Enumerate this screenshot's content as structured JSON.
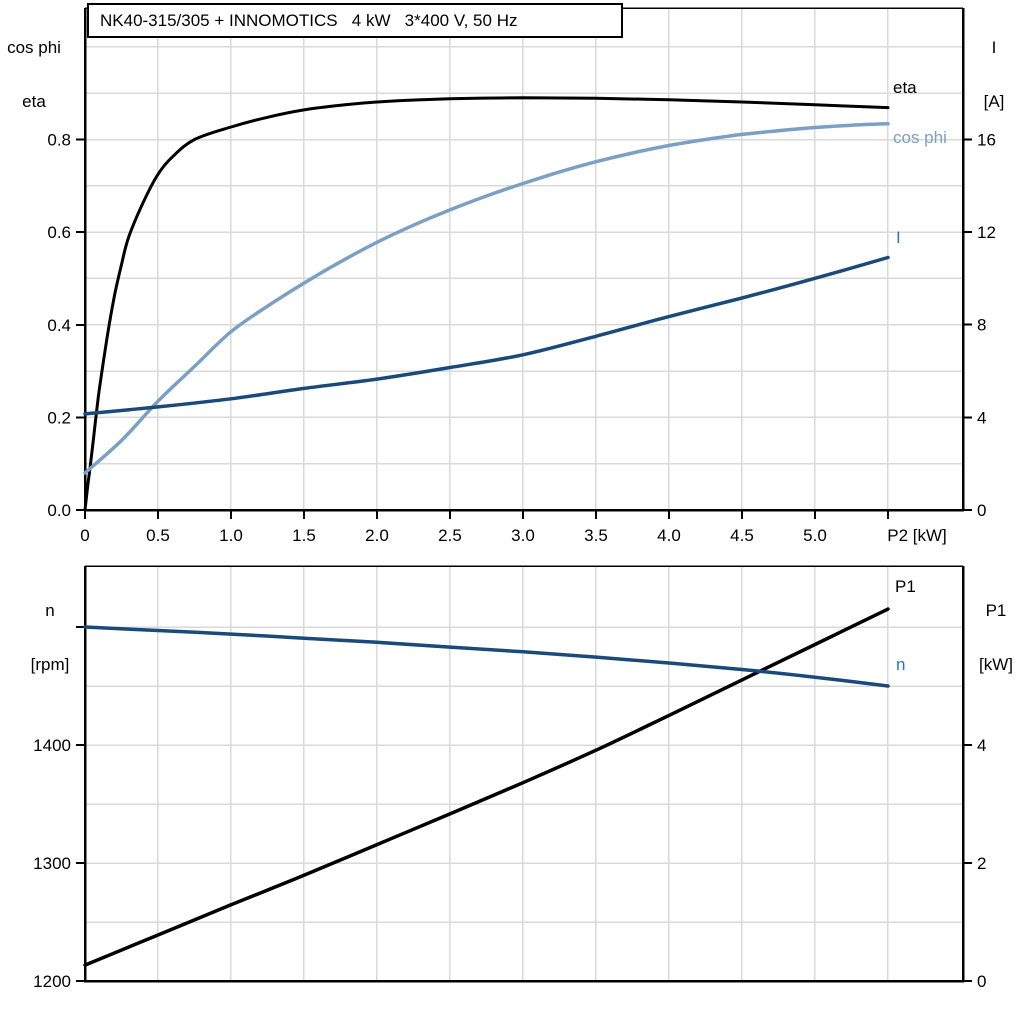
{
  "title_box": {
    "text": "NK40-315/305 + INNOMOTICS   4 kW   3*400 V, 50 Hz"
  },
  "colors": {
    "black": "#000000",
    "cos_phi_blue": "#7AA0C5",
    "dark_blue": "#1A4A7A",
    "label_blue": "#2E74B5",
    "grid": "#D9D9D9",
    "background": "#FFFFFF"
  },
  "axis_headers": {
    "top_left": [
      "cos phi",
      "eta"
    ],
    "top_right": [
      "I",
      "[A]"
    ],
    "bottom_left": [
      "n",
      "[rpm]"
    ],
    "bottom_right": [
      "P1",
      "[kW]"
    ]
  },
  "chart_data": [
    {
      "type": "line",
      "title": "NK40-315/305 + INNOMOTICS 4 kW 3*400 V, 50 Hz",
      "x_axis": {
        "label": "P2 [kW]",
        "min": 0,
        "max": 6.014,
        "grid_step": 0.5,
        "grid_last": 5.5,
        "ticks": [
          0,
          0.5,
          1,
          1.5,
          2,
          2.5,
          3,
          3.5,
          4,
          4.5,
          5,
          5.5
        ],
        "tick_labels": [
          "0",
          "0.5",
          "1.0",
          "1.5",
          "2.0",
          "2.5",
          "3.0",
          "3.5",
          "4.0",
          "4.5",
          "5.0",
          ""
        ],
        "unit_label": "P2 [kW]"
      },
      "y_left": {
        "label": "cos phi / eta",
        "min": 0,
        "max": 1.084,
        "grid_first": 0.1,
        "grid_step": 0.1,
        "grid_last": 1.0,
        "ticks": [
          0,
          0.2,
          0.4,
          0.6,
          0.8
        ],
        "tick_labels": [
          "0.0",
          "0.2",
          "0.4",
          "0.6",
          "0.8"
        ]
      },
      "y_right": {
        "label": "I [A]",
        "min": 0,
        "max": 21.67,
        "ticks": [
          0,
          4,
          8,
          12,
          16
        ],
        "tick_labels": [
          "0",
          "4",
          "8",
          "12",
          "16"
        ]
      },
      "legend_position": "curve-end-labels",
      "grid": true,
      "series": [
        {
          "name": "eta",
          "label": "eta",
          "axis": "left",
          "color": "black",
          "label_color": "black",
          "width": 3,
          "points": [
            [
              0,
              0
            ],
            [
              0.02,
              0.055
            ],
            [
              0.04,
              0.105
            ],
            [
              0.06,
              0.16
            ],
            [
              0.08,
              0.215
            ],
            [
              0.1,
              0.265
            ],
            [
              0.15,
              0.37
            ],
            [
              0.2,
              0.46
            ],
            [
              0.25,
              0.53
            ],
            [
              0.3,
              0.59
            ],
            [
              0.4,
              0.665
            ],
            [
              0.5,
              0.725
            ],
            [
              0.6,
              0.763
            ],
            [
              0.75,
              0.8
            ],
            [
              1,
              0.827
            ],
            [
              1.25,
              0.848
            ],
            [
              1.5,
              0.864
            ],
            [
              1.75,
              0.874
            ],
            [
              2,
              0.881
            ],
            [
              2.5,
              0.888
            ],
            [
              3,
              0.89
            ],
            [
              3.5,
              0.889
            ],
            [
              4,
              0.886
            ],
            [
              4.5,
              0.881
            ],
            [
              5,
              0.875
            ],
            [
              5.5,
              0.869
            ]
          ]
        },
        {
          "name": "cos_phi",
          "label": "cos phi",
          "axis": "left",
          "color": "cos_phi_blue",
          "label_color": "cos_phi_blue",
          "width": 3.5,
          "points": [
            [
              0,
              0.08
            ],
            [
              0.25,
              0.15
            ],
            [
              0.5,
              0.235
            ],
            [
              0.75,
              0.31
            ],
            [
              1,
              0.385
            ],
            [
              1.25,
              0.44
            ],
            [
              1.5,
              0.49
            ],
            [
              1.75,
              0.536
            ],
            [
              2,
              0.578
            ],
            [
              2.25,
              0.615
            ],
            [
              2.5,
              0.648
            ],
            [
              2.75,
              0.678
            ],
            [
              3,
              0.705
            ],
            [
              3.25,
              0.73
            ],
            [
              3.5,
              0.752
            ],
            [
              3.75,
              0.771
            ],
            [
              4,
              0.787
            ],
            [
              4.25,
              0.8
            ],
            [
              4.5,
              0.811
            ],
            [
              4.75,
              0.819
            ],
            [
              5,
              0.826
            ],
            [
              5.25,
              0.831
            ],
            [
              5.5,
              0.834
            ]
          ]
        },
        {
          "name": "current",
          "label": "I",
          "axis": "right",
          "color": "dark_blue",
          "label_color": "label_blue",
          "width": 3.5,
          "points": [
            [
              0,
              4.15
            ],
            [
              0.5,
              4.45
            ],
            [
              1,
              4.8
            ],
            [
              1.5,
              5.25
            ],
            [
              2,
              5.65
            ],
            [
              2.5,
              6.15
            ],
            [
              3,
              6.7
            ],
            [
              3.5,
              7.5
            ],
            [
              4,
              8.35
            ],
            [
              4.5,
              9.15
            ],
            [
              5,
              10
            ],
            [
              5.5,
              10.9
            ]
          ]
        }
      ]
    },
    {
      "type": "line",
      "x_axis": {
        "label": "",
        "min": 0,
        "max": 6.014,
        "grid_step": 0.5,
        "grid_last": 5.5,
        "ticks": [],
        "tick_labels": [],
        "unit_label": ""
      },
      "y_left": {
        "label": "n [rpm]",
        "min": 1200,
        "max": 1551.7,
        "grid_first": 1250,
        "grid_step": 50,
        "grid_last": 1500,
        "ticks": [
          1200,
          1300,
          1400,
          1500
        ],
        "tick_labels": [
          "1200",
          "1300",
          "1400",
          ""
        ]
      },
      "y_right": {
        "label": "P1 [kW]",
        "min": 0,
        "max": 7.03,
        "ticks": [
          0,
          2,
          4
        ],
        "tick_labels": [
          "0",
          "2",
          "4"
        ]
      },
      "legend_position": "curve-end-labels",
      "grid": true,
      "series": [
        {
          "name": "P1",
          "label": "P1",
          "axis": "right",
          "color": "black",
          "label_color": "black",
          "width": 3.5,
          "points": [
            [
              0,
              0.27
            ],
            [
              0.5,
              0.78
            ],
            [
              1,
              1.29
            ],
            [
              1.5,
              1.79
            ],
            [
              2,
              2.31
            ],
            [
              2.5,
              2.83
            ],
            [
              3,
              3.36
            ],
            [
              3.5,
              3.91
            ],
            [
              4,
              4.5
            ],
            [
              4.5,
              5.1
            ],
            [
              5,
              5.7
            ],
            [
              5.5,
              6.3
            ]
          ]
        },
        {
          "name": "n",
          "label": "n",
          "axis": "left",
          "color": "dark_blue",
          "label_color": "label_blue",
          "width": 3.5,
          "points": [
            [
              0,
              1500
            ],
            [
              0.5,
              1497
            ],
            [
              1,
              1494
            ],
            [
              1.5,
              1490.5
            ],
            [
              2,
              1487
            ],
            [
              2.5,
              1483
            ],
            [
              3,
              1479
            ],
            [
              3.5,
              1474.5
            ],
            [
              4,
              1469.5
            ],
            [
              4.5,
              1464
            ],
            [
              5,
              1457.5
            ],
            [
              5.5,
              1450
            ]
          ]
        }
      ]
    }
  ]
}
